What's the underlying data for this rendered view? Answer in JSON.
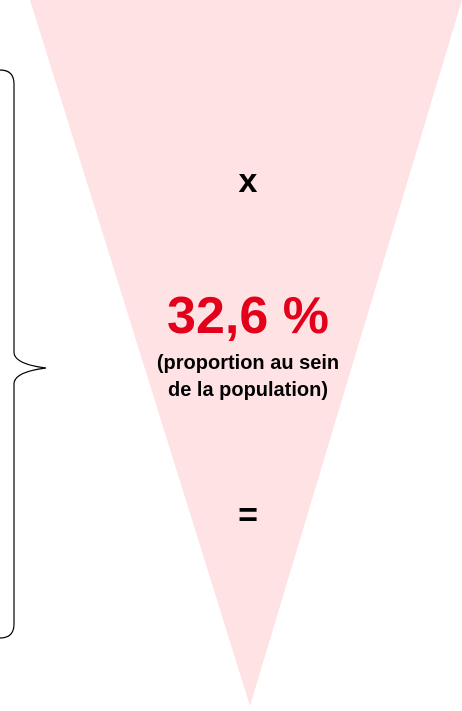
{
  "operator_multiply": "x",
  "percentage": "32,6 %",
  "note_line1": "(proportion au sein",
  "note_line2": "de la population)",
  "operator_equals": "="
}
